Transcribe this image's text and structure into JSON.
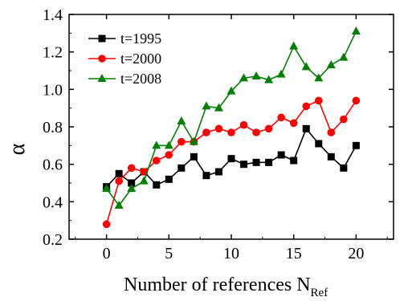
{
  "chart_data": {
    "type": "line",
    "xlabel": "Number of references N",
    "xlabel_sub": "Ref",
    "ylabel": "α",
    "xlim": [
      -3,
      23
    ],
    "ylim": [
      0.2,
      1.4
    ],
    "xticks": [
      "0",
      "5",
      "10",
      "15",
      "20"
    ],
    "yticks": [
      "0.2",
      "0.4",
      "0.6",
      "0.8",
      "1.0",
      "1.2",
      "1.4"
    ],
    "x": [
      0,
      1,
      2,
      3,
      4,
      5,
      6,
      7,
      8,
      9,
      10,
      11,
      12,
      13,
      14,
      15,
      16,
      17,
      18,
      19,
      20
    ],
    "legend_position": "top-left",
    "series": [
      {
        "name": "t=1995",
        "color": "#000000",
        "marker": "square",
        "values": [
          0.48,
          0.55,
          0.5,
          0.56,
          0.49,
          0.52,
          0.58,
          0.64,
          0.54,
          0.56,
          0.63,
          0.6,
          0.61,
          0.61,
          0.65,
          0.62,
          0.79,
          0.71,
          0.64,
          0.58,
          0.7
        ]
      },
      {
        "name": "t=2000",
        "color": "#ff0000",
        "marker": "circle",
        "values": [
          0.28,
          0.51,
          0.58,
          0.56,
          0.62,
          0.65,
          0.72,
          0.72,
          0.77,
          0.79,
          0.77,
          0.81,
          0.77,
          0.79,
          0.85,
          0.82,
          0.91,
          0.94,
          0.77,
          0.84,
          0.94
        ]
      },
      {
        "name": "t=2008",
        "color": "#008000",
        "marker": "triangle",
        "values": [
          0.47,
          0.38,
          0.47,
          0.51,
          0.7,
          0.7,
          0.83,
          0.72,
          0.91,
          0.9,
          0.99,
          1.06,
          1.07,
          1.05,
          1.08,
          1.23,
          1.12,
          1.06,
          1.13,
          1.17,
          1.31
        ]
      }
    ]
  }
}
